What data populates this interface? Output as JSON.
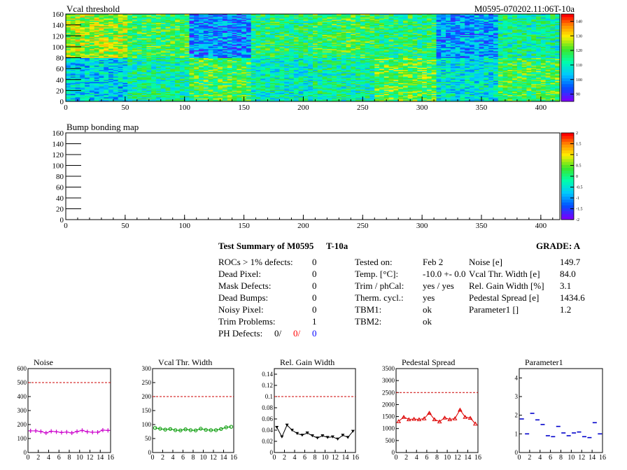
{
  "header": {
    "left_title": "Vcal threshold",
    "right_title": "M0595-070202.11:06T-10a"
  },
  "bump_title": "Bump bonding map",
  "summary": {
    "title": "Test Summary of M0595",
    "suffix": "T-10a",
    "grade": "GRADE:  A",
    "left_rows": [
      {
        "label": "ROCs > 1% defects:",
        "value": "0"
      },
      {
        "label": "Dead Pixel:",
        "value": "0"
      },
      {
        "label": "Mask Defects:",
        "value": "0"
      },
      {
        "label": "Dead Bumps:",
        "value": "0"
      },
      {
        "label": "Noisy Pixel:",
        "value": "0"
      },
      {
        "label": "Trim Problems:",
        "value": "1"
      }
    ],
    "ph": {
      "label": "PH Defects:",
      "v1": "0/",
      "v2": "0/",
      "v3": "0",
      "c2": "#ff0000",
      "c3": "#0000ff"
    },
    "mid_rows": [
      {
        "label": "Tested on:",
        "value": "Feb 2"
      },
      {
        "label": "Temp. [°C]:",
        "value": "-10.0 +- 0.0"
      },
      {
        "label": "Trim / phCal:",
        "value": "yes / yes"
      },
      {
        "label": "Therm. cycl.:",
        "value": "yes"
      },
      {
        "label": "TBM1:",
        "value": "ok"
      },
      {
        "label": "TBM2:",
        "value": "ok"
      }
    ],
    "right_rows": [
      {
        "label": "Noise [e]",
        "value": "149.7"
      },
      {
        "label": "Vcal Thr. Width [e]",
        "value": "84.0"
      },
      {
        "label": "Rel. Gain Width [%]",
        "value": "3.1"
      },
      {
        "label": "Pedestal Spread [e]",
        "value": "1434.6"
      },
      {
        "label": "Parameter1 []",
        "value": "1.2"
      }
    ]
  },
  "chart_data": [
    {
      "type": "heatmap",
      "title": "Vcal threshold",
      "xlim": [
        0,
        416
      ],
      "ylim": [
        0,
        160
      ],
      "xticks": [
        0,
        50,
        100,
        150,
        200,
        250,
        300,
        350,
        400
      ],
      "yticks": [
        0,
        20,
        40,
        60,
        80,
        100,
        120,
        140,
        160
      ],
      "color_scale_ticks": [
        90,
        100,
        110,
        120,
        130,
        140
      ],
      "color_range": [
        85,
        145
      ],
      "roc_means": [
        [
          105,
          112,
          118,
          110,
          112,
          120,
          108,
          118
        ],
        [
          125,
          118,
          98,
          115,
          118,
          115,
          100,
          112
        ]
      ]
    },
    {
      "type": "heatmap",
      "title": "Bump bonding map",
      "xlim": [
        0,
        416
      ],
      "ylim": [
        0,
        160
      ],
      "xticks": [
        0,
        50,
        100,
        150,
        200,
        250,
        300,
        350,
        400
      ],
      "yticks": [
        0,
        20,
        40,
        60,
        80,
        100,
        120,
        140,
        160
      ],
      "color_scale_ticks": [
        -2,
        -1.5,
        -1,
        -0.5,
        0,
        0.5,
        1,
        1.5,
        2
      ],
      "color_range": [
        -2,
        2
      ]
    },
    {
      "type": "line",
      "title": "Noise",
      "color": "#cc00cc",
      "marker": "plus",
      "xlim": [
        0,
        16
      ],
      "ylim": [
        0,
        600
      ],
      "yticks": [
        0,
        100,
        200,
        300,
        400,
        500,
        600
      ],
      "xticks": [
        0,
        2,
        4,
        6,
        8,
        10,
        12,
        14,
        16
      ],
      "limit": 500,
      "x": [
        0,
        1,
        2,
        3,
        4,
        5,
        6,
        7,
        8,
        9,
        10,
        11,
        12,
        13,
        14,
        15
      ],
      "values": [
        155,
        155,
        150,
        140,
        152,
        148,
        143,
        146,
        140,
        150,
        158,
        148,
        145,
        145,
        160,
        158
      ]
    },
    {
      "type": "line",
      "title": "Vcal Thr. Width",
      "color": "#009900",
      "marker": "circle",
      "xlim": [
        0,
        16
      ],
      "ylim": [
        0,
        300
      ],
      "yticks": [
        0,
        50,
        100,
        150,
        200,
        250,
        300
      ],
      "xticks": [
        0,
        2,
        4,
        6,
        8,
        10,
        12,
        14,
        16
      ],
      "limit": 200,
      "x": [
        0,
        1,
        2,
        3,
        4,
        5,
        6,
        7,
        8,
        9,
        10,
        11,
        12,
        13,
        14,
        15
      ],
      "values": [
        88,
        85,
        82,
        84,
        80,
        79,
        83,
        80,
        79,
        85,
        81,
        80,
        80,
        84,
        90,
        92
      ]
    },
    {
      "type": "line",
      "title": "Rel. Gain Width",
      "color": "#000000",
      "marker": "triangle-down",
      "xlim": [
        0,
        16
      ],
      "ylim": [
        0,
        0.15
      ],
      "yticks": [
        0,
        0.02,
        0.04,
        0.06,
        0.08,
        0.1,
        0.12,
        0.14
      ],
      "xticks": [
        0,
        2,
        4,
        6,
        8,
        10,
        12,
        14,
        16
      ],
      "limit": 0.1,
      "x": [
        0,
        1,
        2,
        3,
        4,
        5,
        6,
        7,
        8,
        9,
        10,
        11,
        12,
        13,
        14,
        15
      ],
      "values": [
        0.045,
        0.028,
        0.049,
        0.04,
        0.034,
        0.031,
        0.035,
        0.03,
        0.026,
        0.03,
        0.027,
        0.028,
        0.024,
        0.031,
        0.027,
        0.038
      ]
    },
    {
      "type": "line",
      "title": "Pedestal Spread",
      "color": "#dd0000",
      "marker": "triangle-up",
      "xlim": [
        0,
        16
      ],
      "ylim": [
        0,
        3500
      ],
      "yticks": [
        0,
        500,
        1000,
        1500,
        2000,
        2500,
        3000,
        3500
      ],
      "xticks": [
        0,
        2,
        4,
        6,
        8,
        10,
        12,
        14,
        16
      ],
      "limit": 2500,
      "x": [
        0,
        1,
        2,
        3,
        4,
        5,
        6,
        7,
        8,
        9,
        10,
        11,
        12,
        13,
        14,
        15
      ],
      "values": [
        1300,
        1480,
        1380,
        1400,
        1380,
        1420,
        1650,
        1380,
        1290,
        1450,
        1380,
        1420,
        1780,
        1480,
        1440,
        1200
      ]
    },
    {
      "type": "scatter",
      "title": "Parameter1",
      "color": "#0000cc",
      "marker": "hbar",
      "xlim": [
        0,
        16
      ],
      "ylim": [
        0,
        4.5
      ],
      "yticks": [
        0,
        1,
        2,
        3,
        4
      ],
      "xticks": [
        0,
        2,
        4,
        6,
        8,
        10,
        12,
        14,
        16
      ],
      "x": [
        0,
        1,
        2,
        3,
        4,
        5,
        6,
        7,
        8,
        9,
        10,
        11,
        12,
        13,
        14,
        15
      ],
      "values": [
        1.8,
        1.0,
        2.1,
        1.75,
        1.5,
        0.9,
        0.85,
        1.4,
        1.05,
        0.9,
        1.05,
        1.1,
        0.85,
        0.8,
        1.6,
        1.0
      ]
    }
  ]
}
